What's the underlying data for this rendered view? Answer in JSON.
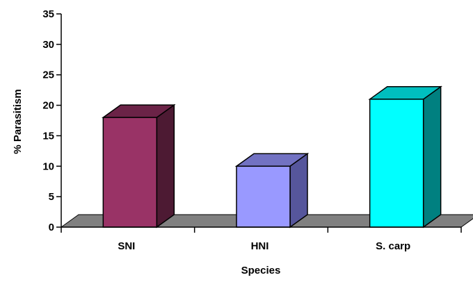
{
  "chart_data": {
    "type": "bar",
    "style": "3d-column",
    "title": "",
    "xlabel": "Species",
    "ylabel": "% Parasitism",
    "categories": [
      "SNI",
      "HNI",
      "S. carp"
    ],
    "values": [
      18,
      10,
      21
    ],
    "ylim": [
      0,
      35
    ],
    "yticks": [
      "0",
      "5",
      "10",
      "15",
      "20",
      "25",
      "30",
      "35"
    ],
    "grid": false,
    "legend": "none",
    "colors": {
      "bars": [
        {
          "front": "#993366",
          "top": "#6b2347",
          "side": "#4d1a33"
        },
        {
          "front": "#9999ff",
          "top": "#7272c2",
          "side": "#56569c"
        },
        {
          "front": "#00ffff",
          "top": "#00bfbf",
          "side": "#008080"
        }
      ],
      "floor": "#808080",
      "axis": "#000000"
    }
  }
}
